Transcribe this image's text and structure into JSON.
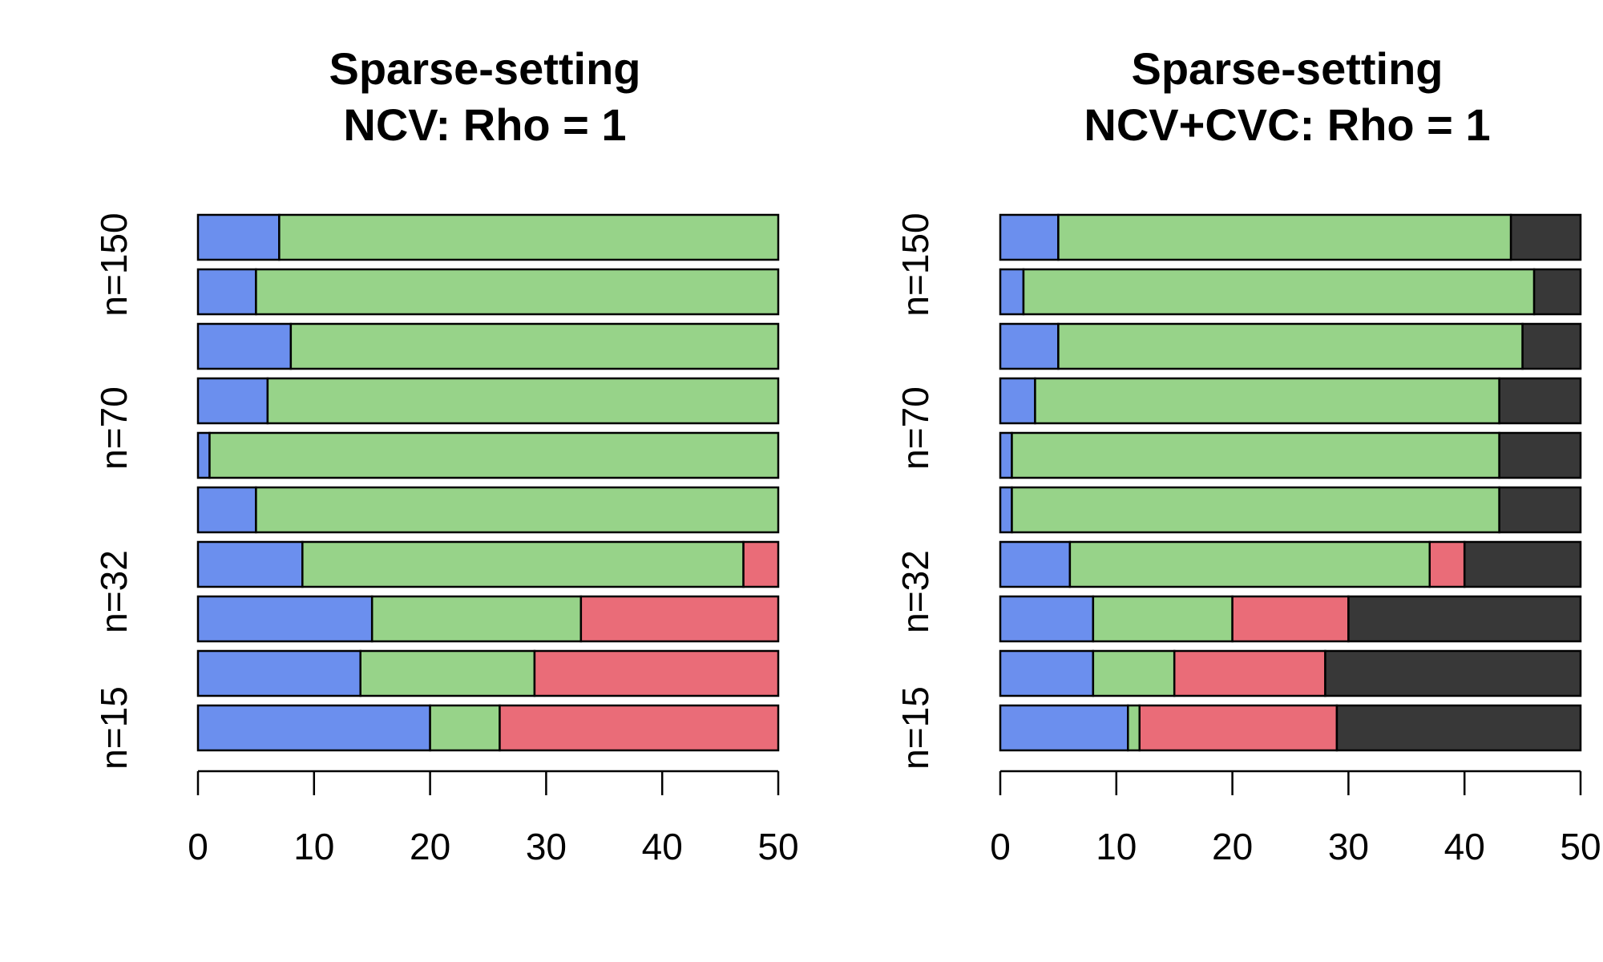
{
  "chart_data": [
    {
      "type": "bar",
      "orientation": "horizontal",
      "stacked": true,
      "title": [
        "Sparse-setting",
        "NCV: Rho = 1"
      ],
      "group_labels": [
        "n=150",
        "n=70",
        "n=32",
        "n=15"
      ],
      "xlim": [
        0,
        50
      ],
      "xticks": [
        0,
        10,
        20,
        30,
        40,
        50
      ],
      "colors": [
        "#6b8fee",
        "#97d389",
        "#ea6c78"
      ],
      "bars": [
        [
          7,
          43,
          0
        ],
        [
          5,
          45,
          0
        ],
        [
          8,
          42,
          0
        ],
        [
          6,
          44,
          0
        ],
        [
          1,
          49,
          0
        ],
        [
          5,
          45,
          0
        ],
        [
          9,
          38,
          3
        ],
        [
          15,
          18,
          17
        ],
        [
          14,
          15,
          21
        ],
        [
          20,
          6,
          24
        ]
      ]
    },
    {
      "type": "bar",
      "orientation": "horizontal",
      "stacked": true,
      "title": [
        "Sparse-setting",
        "NCV+CVC: Rho = 1"
      ],
      "group_labels": [
        "n=150",
        "n=70",
        "n=32",
        "n=15"
      ],
      "xlim": [
        0,
        50
      ],
      "xticks": [
        0,
        10,
        20,
        30,
        40,
        50
      ],
      "colors": [
        "#6b8fee",
        "#97d389",
        "#ea6c78",
        "#383838"
      ],
      "bars": [
        [
          5,
          39,
          0,
          6
        ],
        [
          2,
          44,
          0,
          4
        ],
        [
          5,
          40,
          0,
          5
        ],
        [
          3,
          40,
          0,
          7
        ],
        [
          1,
          42,
          0,
          7
        ],
        [
          1,
          42,
          0,
          7
        ],
        [
          6,
          31,
          3,
          10
        ],
        [
          8,
          12,
          10,
          20
        ],
        [
          8,
          7,
          13,
          22
        ],
        [
          11,
          1,
          17,
          21
        ]
      ]
    }
  ]
}
